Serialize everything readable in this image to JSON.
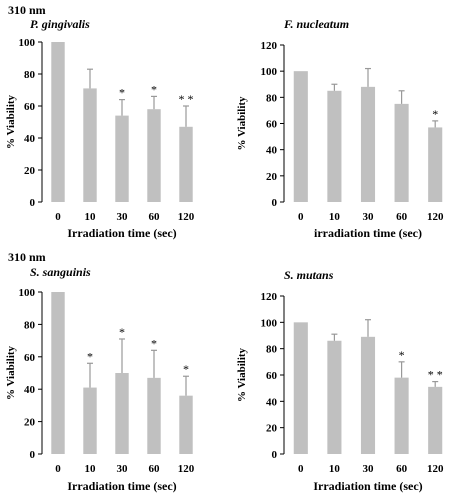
{
  "section_labels": [
    "310 nm",
    "310 nm"
  ],
  "chart_data": [
    {
      "type": "bar",
      "title": "P. gingivalis",
      "xlabel": "Irradiation time (sec)",
      "ylabel": "% Viability",
      "categories": [
        "0",
        "10",
        "30",
        "60",
        "120"
      ],
      "values": [
        100,
        71,
        54,
        58,
        47
      ],
      "errors": [
        0,
        12,
        10,
        8,
        13
      ],
      "annotations": [
        "",
        "",
        "*",
        "*",
        "* *"
      ],
      "ylim": [
        0,
        100
      ],
      "yticks": [
        0,
        20,
        40,
        60,
        80,
        100
      ],
      "bar_color": "#c0c0c0"
    },
    {
      "type": "bar",
      "title": "F. nucleatum",
      "xlabel": "irradiation time (sec)",
      "ylabel": "% Viability",
      "categories": [
        "0",
        "10",
        "30",
        "60",
        "120"
      ],
      "values": [
        100,
        85,
        88,
        75,
        57
      ],
      "errors": [
        0,
        5,
        14,
        10,
        5
      ],
      "annotations": [
        "",
        "",
        "",
        "",
        "*"
      ],
      "ylim": [
        0,
        120
      ],
      "yticks": [
        0,
        20,
        40,
        60,
        80,
        100,
        120
      ],
      "bar_color": "#c0c0c0"
    },
    {
      "type": "bar",
      "title": "S. sanguinis",
      "xlabel": "Irradiation time (sec)",
      "ylabel": "% Viability",
      "categories": [
        "0",
        "10",
        "30",
        "60",
        "120"
      ],
      "values": [
        100,
        41,
        50,
        47,
        36
      ],
      "errors": [
        0,
        15,
        21,
        17,
        12
      ],
      "annotations": [
        "",
        "*",
        "*",
        "*",
        "*"
      ],
      "ylim": [
        0,
        100
      ],
      "yticks": [
        0,
        20,
        40,
        60,
        80,
        100
      ],
      "bar_color": "#c0c0c0"
    },
    {
      "type": "bar",
      "title": "S. mutans",
      "xlabel": "Irradiation time (sec)",
      "ylabel": "% Viability",
      "categories": [
        "0",
        "10",
        "30",
        "60",
        "120"
      ],
      "values": [
        100,
        86,
        89,
        58,
        51
      ],
      "errors": [
        0,
        5,
        13,
        12,
        4
      ],
      "annotations": [
        "",
        "",
        "",
        "*",
        "* *"
      ],
      "ylim": [
        0,
        120
      ],
      "yticks": [
        0,
        20,
        40,
        60,
        80,
        100,
        120
      ],
      "bar_color": "#c0c0c0"
    }
  ]
}
